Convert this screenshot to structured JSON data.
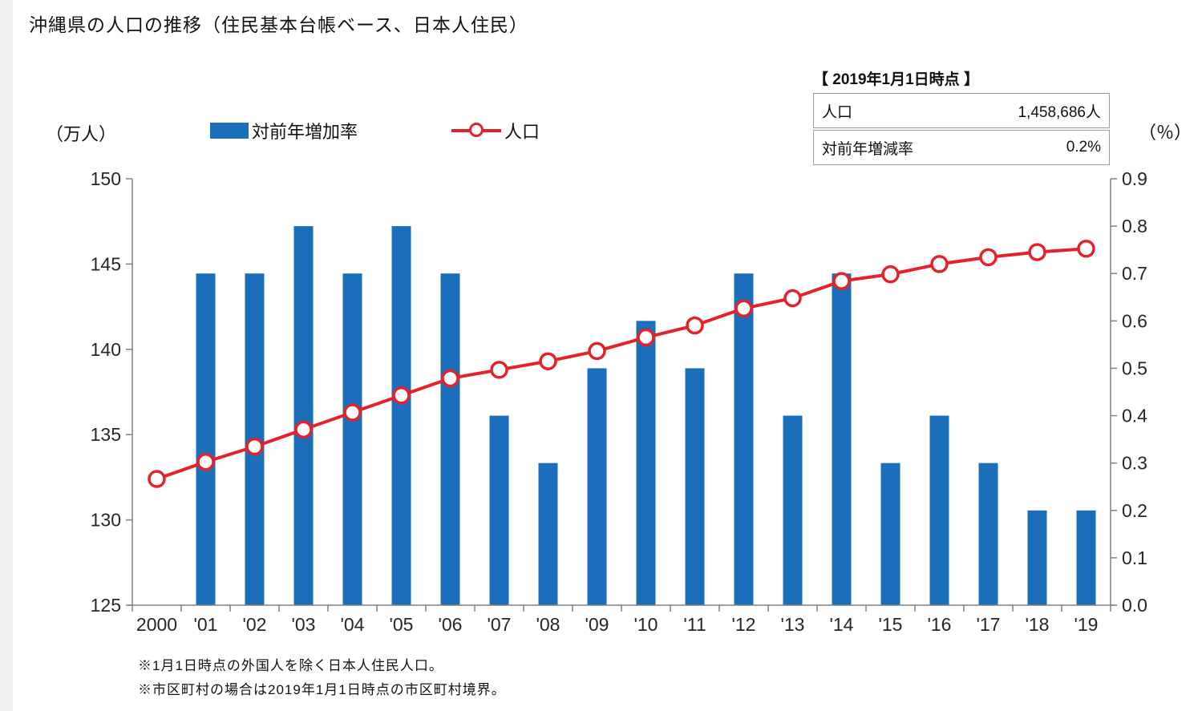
{
  "title": "沖縄県の人口の推移（住民基本台帳ベース、日本人住民）",
  "units": {
    "left": "（万人）",
    "right": "（％）"
  },
  "legend": {
    "bar_label": "対前年増加率",
    "line_label": "人口"
  },
  "info_box": {
    "heading": "【 2019年1月1日時点 】",
    "rows": [
      {
        "label": "人口",
        "value": "1,458,686人"
      },
      {
        "label": "対前年増減率",
        "value": "0.2%"
      }
    ]
  },
  "notes": [
    "※1月1日時点の外国人を除く日本人住民人口。",
    "※市区町村の場合は2019年1月1日時点の市区町村境界。"
  ],
  "colors": {
    "bar": "#1b6fba",
    "line": "#e5212a",
    "marker_fill": "#ffffff",
    "axis": "#808080",
    "tick_text": "#262626"
  },
  "chart_data": {
    "type": "combo",
    "categories": [
      "2000",
      "'01",
      "'02",
      "'03",
      "'04",
      "'05",
      "'06",
      "'07",
      "'08",
      "'09",
      "'10",
      "'11",
      "'12",
      "'13",
      "'14",
      "'15",
      "'16",
      "'17",
      "'18",
      "'19"
    ],
    "series": [
      {
        "name": "対前年増加率",
        "type": "bar",
        "axis": "right",
        "color": "#1b6fba",
        "values": [
          null,
          0.7,
          0.7,
          0.8,
          0.7,
          0.8,
          0.7,
          0.4,
          0.3,
          0.5,
          0.6,
          0.5,
          0.7,
          0.4,
          0.7,
          0.3,
          0.4,
          0.3,
          0.2,
          0.2
        ]
      },
      {
        "name": "人口",
        "type": "line",
        "axis": "left",
        "color": "#e5212a",
        "marker_fill": "#ffffff",
        "values": [
          132.4,
          133.4,
          134.3,
          135.3,
          136.3,
          137.3,
          138.3,
          138.8,
          139.3,
          139.9,
          140.7,
          141.4,
          142.4,
          143.0,
          144.0,
          144.4,
          145.0,
          145.4,
          145.7,
          145.9
        ]
      }
    ],
    "left_axis": {
      "min": 125,
      "max": 150,
      "ticks": [
        125,
        130,
        135,
        140,
        145,
        150
      ],
      "unit": "（万人）"
    },
    "right_axis": {
      "min": 0,
      "max": 0.9,
      "ticks": [
        "0.0",
        "0.1",
        "0.2",
        "0.3",
        "0.4",
        "0.5",
        "0.6",
        "0.7",
        "0.8",
        "0.9"
      ],
      "unit": "（％）"
    },
    "grid": false,
    "legend_position": "top"
  }
}
